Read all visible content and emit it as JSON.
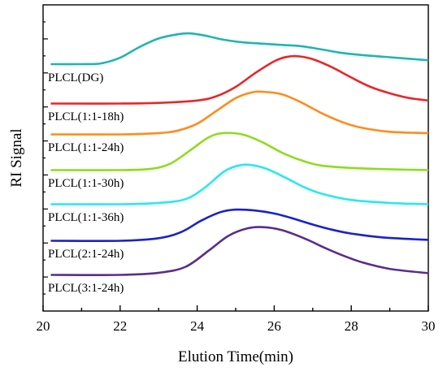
{
  "chart_data": {
    "type": "line",
    "xlabel": "Elution Time(min)",
    "ylabel": "RI Signal",
    "xlim": [
      20,
      30
    ],
    "x_ticks": [
      "20",
      "22",
      "24",
      "26",
      "28",
      "30"
    ],
    "y_ticks_labeled": false,
    "grid": false,
    "legend": "inline labels under each curve",
    "series": [
      {
        "name": "PLCL(DG)",
        "color": "#1fb5b3",
        "baseline": 0.0,
        "points": [
          [
            20.2,
            0.1
          ],
          [
            21.0,
            0.1
          ],
          [
            21.5,
            0.18
          ],
          [
            22.0,
            0.85
          ],
          [
            22.5,
            2.1
          ],
          [
            23.0,
            3.1
          ],
          [
            23.5,
            3.6
          ],
          [
            23.8,
            3.7
          ],
          [
            24.2,
            3.45
          ],
          [
            24.7,
            2.95
          ],
          [
            25.2,
            2.65
          ],
          [
            25.7,
            2.5
          ],
          [
            26.2,
            2.35
          ],
          [
            26.7,
            2.2
          ],
          [
            27.2,
            1.85
          ],
          [
            27.7,
            1.45
          ],
          [
            28.2,
            1.2
          ],
          [
            29.0,
            0.9
          ],
          [
            30.0,
            0.55
          ]
        ]
      },
      {
        "name": "PLCL(1:1-18h)",
        "color": "#e8262a",
        "baseline": 0.0,
        "points": [
          [
            20.2,
            0.05
          ],
          [
            22.0,
            0.05
          ],
          [
            23.0,
            0.12
          ],
          [
            24.0,
            0.4
          ],
          [
            24.5,
            0.9
          ],
          [
            25.0,
            2.0
          ],
          [
            25.5,
            3.6
          ],
          [
            26.0,
            5.0
          ],
          [
            26.3,
            5.5
          ],
          [
            26.6,
            5.6
          ],
          [
            27.0,
            5.25
          ],
          [
            27.5,
            4.3
          ],
          [
            28.0,
            3.1
          ],
          [
            28.5,
            2.0
          ],
          [
            29.0,
            1.25
          ],
          [
            29.5,
            0.7
          ],
          [
            30.0,
            0.4
          ]
        ]
      },
      {
        "name": "PLCL(1:1-24h)",
        "color": "#ff8c1a",
        "baseline": 0.0,
        "points": [
          [
            20.2,
            0.05
          ],
          [
            22.0,
            0.05
          ],
          [
            23.0,
            0.2
          ],
          [
            23.5,
            0.5
          ],
          [
            24.0,
            1.3
          ],
          [
            24.5,
            2.8
          ],
          [
            25.0,
            4.3
          ],
          [
            25.4,
            4.95
          ],
          [
            25.7,
            5.05
          ],
          [
            26.2,
            4.75
          ],
          [
            26.7,
            3.8
          ],
          [
            27.2,
            2.6
          ],
          [
            27.7,
            1.6
          ],
          [
            28.2,
            0.9
          ],
          [
            29.0,
            0.35
          ],
          [
            30.0,
            0.2
          ]
        ]
      },
      {
        "name": "PLCL(1:1-30h)",
        "color": "#8edc1e",
        "baseline": 0.0,
        "points": [
          [
            20.2,
            0.05
          ],
          [
            22.0,
            0.05
          ],
          [
            22.8,
            0.2
          ],
          [
            23.3,
            0.8
          ],
          [
            23.8,
            2.3
          ],
          [
            24.3,
            3.9
          ],
          [
            24.7,
            4.4
          ],
          [
            25.2,
            4.2
          ],
          [
            25.7,
            3.3
          ],
          [
            26.2,
            2.1
          ],
          [
            26.7,
            1.2
          ],
          [
            27.2,
            0.6
          ],
          [
            28.0,
            0.3
          ],
          [
            29.0,
            0.15
          ],
          [
            30.0,
            0.05
          ]
        ]
      },
      {
        "name": "PLCL(1:1-36h)",
        "color": "#29e8ee",
        "baseline": 0.0,
        "points": [
          [
            20.2,
            0.05
          ],
          [
            22.0,
            0.05
          ],
          [
            23.0,
            0.2
          ],
          [
            23.7,
            0.65
          ],
          [
            24.2,
            2.0
          ],
          [
            24.7,
            3.9
          ],
          [
            25.1,
            4.6
          ],
          [
            25.4,
            4.65
          ],
          [
            25.8,
            4.2
          ],
          [
            26.3,
            3.15
          ],
          [
            26.8,
            2.0
          ],
          [
            27.3,
            1.2
          ],
          [
            28.0,
            0.55
          ],
          [
            29.0,
            0.2
          ],
          [
            30.0,
            0.05
          ]
        ]
      },
      {
        "name": "PLCL(2:1-24h)",
        "color": "#1b22c8",
        "baseline": 0.0,
        "points": [
          [
            20.2,
            0.05
          ],
          [
            22.0,
            0.05
          ],
          [
            23.0,
            0.35
          ],
          [
            23.6,
            1.1
          ],
          [
            24.1,
            2.4
          ],
          [
            24.6,
            3.4
          ],
          [
            25.0,
            3.7
          ],
          [
            25.5,
            3.6
          ],
          [
            26.0,
            3.25
          ],
          [
            26.5,
            2.65
          ],
          [
            27.0,
            1.95
          ],
          [
            27.5,
            1.35
          ],
          [
            28.0,
            0.9
          ],
          [
            28.8,
            0.45
          ],
          [
            30.0,
            0.15
          ]
        ]
      },
      {
        "name": "PLCL(3:1-24h)",
        "color": "#5a2d8c",
        "baseline": 0.0,
        "points": [
          [
            20.2,
            0.05
          ],
          [
            22.0,
            0.05
          ],
          [
            23.0,
            0.3
          ],
          [
            23.7,
            1.0
          ],
          [
            24.3,
            2.9
          ],
          [
            24.8,
            4.6
          ],
          [
            25.3,
            5.5
          ],
          [
            25.7,
            5.65
          ],
          [
            26.2,
            5.3
          ],
          [
            26.8,
            4.3
          ],
          [
            27.3,
            3.25
          ],
          [
            27.8,
            2.3
          ],
          [
            28.3,
            1.5
          ],
          [
            29.0,
            0.75
          ],
          [
            30.0,
            0.25
          ]
        ]
      }
    ]
  }
}
